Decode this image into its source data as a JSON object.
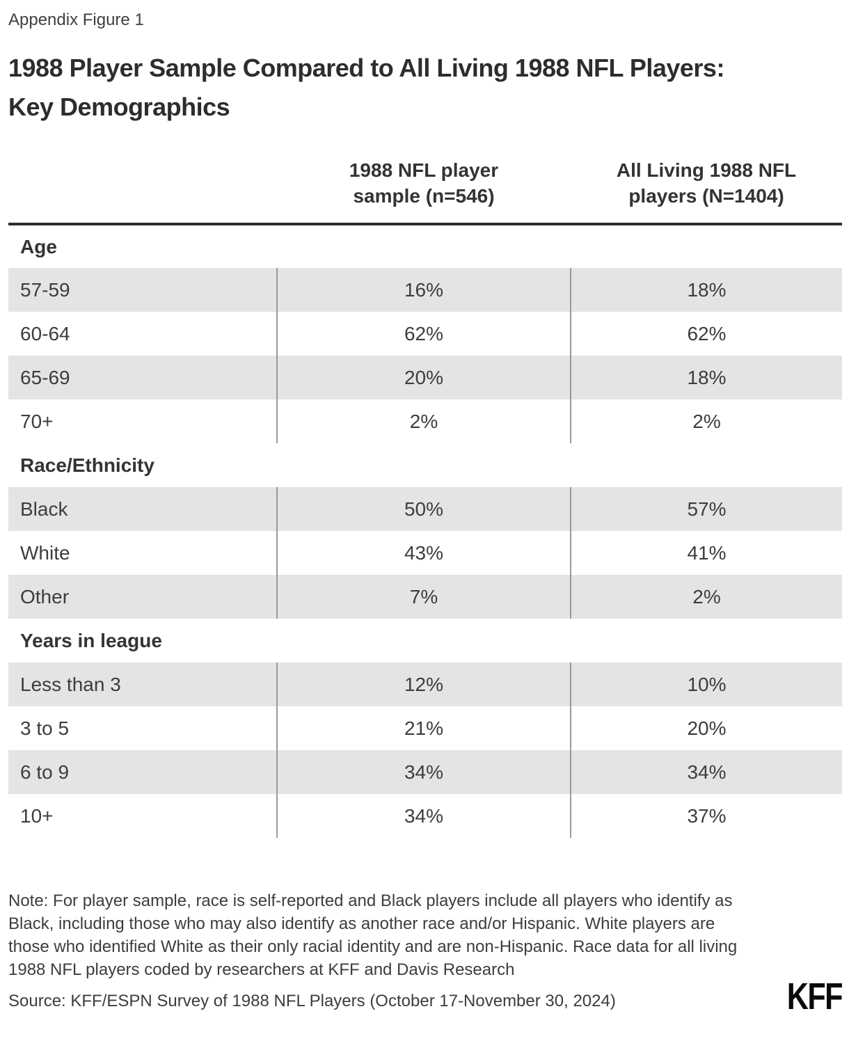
{
  "header": {
    "figure_label": "Appendix Figure 1",
    "title_lines": [
      "1988 Player Sample Compared to All Living 1988 NFL Players:",
      "Key Demographics"
    ]
  },
  "chart_data": {
    "type": "table",
    "title": "1988 Player Sample Compared to All Living 1988 NFL Players: Key Demographics",
    "columns": [
      {
        "line1": "1988 NFL player",
        "line2": "sample (n=546)",
        "full": "1988 NFL player sample (n=546)"
      },
      {
        "line1": "All Living 1988 NFL",
        "line2": "players (N=1404)",
        "full": "All Living 1988 NFL players (N=1404)"
      }
    ],
    "sections": [
      {
        "header": "Age",
        "rows": [
          {
            "label": "57-59",
            "values": [
              "16%",
              "18%"
            ]
          },
          {
            "label": "60-64",
            "values": [
              "62%",
              "62%"
            ]
          },
          {
            "label": "65-69",
            "values": [
              "20%",
              "18%"
            ]
          },
          {
            "label": "70+",
            "values": [
              "2%",
              "2%"
            ]
          }
        ]
      },
      {
        "header": "Race/Ethnicity",
        "rows": [
          {
            "label": "Black",
            "values": [
              "50%",
              "57%"
            ]
          },
          {
            "label": "White",
            "values": [
              "43%",
              "41%"
            ]
          },
          {
            "label": "Other",
            "values": [
              "7%",
              "2%"
            ]
          }
        ]
      },
      {
        "header": "Years in league",
        "rows": [
          {
            "label": "Less than 3",
            "values": [
              "12%",
              "10%"
            ]
          },
          {
            "label": "3 to 5",
            "values": [
              "21%",
              "20%"
            ]
          },
          {
            "label": "6 to 9",
            "values": [
              "34%",
              "34%"
            ]
          },
          {
            "label": "10+",
            "values": [
              "34%",
              "37%"
            ]
          }
        ]
      }
    ]
  },
  "footer": {
    "note": "Note: For player sample, race is self-reported and Black players include all players who identify as Black, including those who may also identify as another race and/or Hispanic. White players are those who identified White as their only racial identity and are non-Hispanic. Race data for all living 1988 NFL players coded by researchers at KFF and Davis Research",
    "source": "Source: KFF/ESPN Survey of 1988 NFL Players (October 17-November 30, 2024)",
    "logo": "KFF"
  },
  "colors": {
    "row_shade": "#e4e4e4",
    "divider": "#999999",
    "header_rule": "#2e2e2e",
    "title_text": "#2d2d2d",
    "body_text": "#3d3d3d",
    "logo_text": "#0b0b0b"
  }
}
